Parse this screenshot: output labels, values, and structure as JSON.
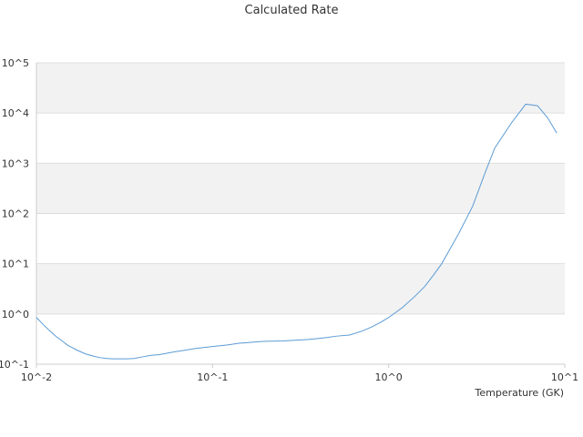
{
  "chart_data": {
    "type": "line",
    "title": "Calculated Rate",
    "xlabel": "Temperature (GK)",
    "ylabel": "",
    "x_scale": "log",
    "y_scale": "log",
    "xlim": [
      0.01,
      10
    ],
    "ylim": [
      0.1,
      100000
    ],
    "x_tick_labels": [
      "10^-2",
      "10^-1",
      "10^0",
      "10^1"
    ],
    "y_tick_labels": [
      "10^5",
      "10^4",
      "10^3",
      "10^2",
      "10^1",
      "10^0",
      "10^-1"
    ],
    "grid": "alternating horizontal bands",
    "legend": "none",
    "colors": {
      "line": "#5b9bd5",
      "band": "#f2f2f2",
      "gridline": "#dddddd",
      "axis": "#cccccc"
    },
    "series": [
      {
        "x": [
          0.01,
          0.011,
          0.012,
          0.013,
          0.014,
          0.015,
          0.017,
          0.019,
          0.021,
          0.023,
          0.025,
          0.027,
          0.03,
          0.033,
          0.036,
          0.04,
          0.045,
          0.05,
          0.055,
          0.06,
          0.07,
          0.08,
          0.09,
          0.1,
          0.12,
          0.14,
          0.16,
          0.18,
          0.2,
          0.25,
          0.3,
          0.35,
          0.4,
          0.45,
          0.5,
          0.6,
          0.7,
          0.8,
          0.9,
          1.0,
          1.2,
          1.4,
          1.6,
          1.8,
          2.0,
          2.5,
          3.0,
          3.5,
          4.0,
          5.0,
          6.0,
          7.0,
          8.0,
          9.0
        ],
        "y": [
          0.85,
          0.6,
          0.45,
          0.35,
          0.29,
          0.24,
          0.19,
          0.16,
          0.145,
          0.135,
          0.13,
          0.128,
          0.128,
          0.128,
          0.13,
          0.14,
          0.15,
          0.155,
          0.165,
          0.175,
          0.19,
          0.205,
          0.215,
          0.225,
          0.24,
          0.26,
          0.27,
          0.28,
          0.285,
          0.29,
          0.3,
          0.31,
          0.325,
          0.34,
          0.36,
          0.38,
          0.45,
          0.55,
          0.68,
          0.85,
          1.35,
          2.2,
          3.5,
          6.0,
          10.0,
          40.0,
          140.0,
          600.0,
          2000.0,
          6500.0,
          15000.0,
          14000.0,
          8000.0,
          4000.0
        ]
      }
    ]
  }
}
